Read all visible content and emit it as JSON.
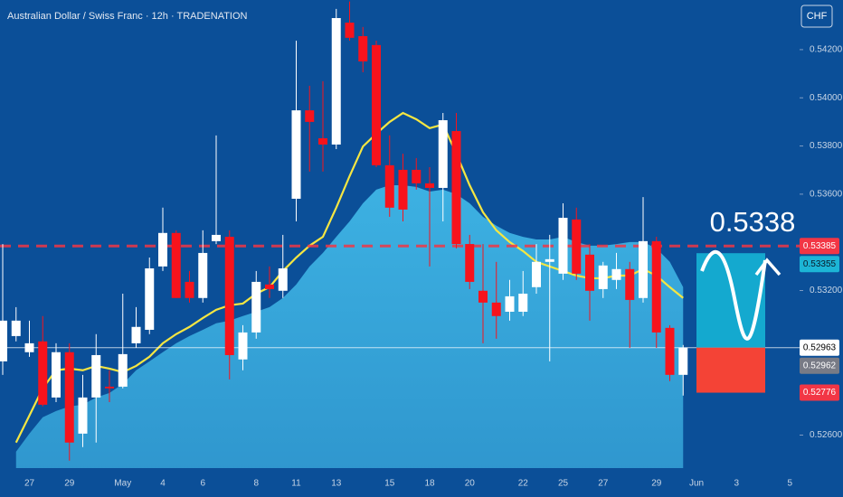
{
  "chart_data": {
    "type": "candlestick",
    "title": "Australian Dollar / Swiss Franc · 12h · TRADENATION",
    "currency": "CHF",
    "annotation": "0.5338",
    "categories": [
      null,
      null,
      "27",
      null,
      null,
      "29",
      null,
      null,
      null,
      "May",
      null,
      null,
      "4",
      null,
      null,
      "6",
      null,
      null,
      null,
      "8",
      null,
      null,
      "11",
      null,
      null,
      "13",
      null,
      null,
      null,
      "15",
      null,
      null,
      "18",
      null,
      null,
      "20",
      null,
      null,
      null,
      "22",
      null,
      null,
      "25",
      null,
      null,
      "27",
      null,
      null,
      null,
      "29",
      null,
      null,
      "Jun",
      null,
      null,
      "3",
      null,
      null,
      null,
      "5"
    ],
    "open": [
      0.52906,
      0.53011,
      0.52944,
      0.52989,
      0.52756,
      0.52944,
      0.52606,
      0.52756,
      0.52801,
      0.52801,
      0.52981,
      0.53037,
      0.533,
      0.53439,
      0.53236,
      0.53169,
      0.53405,
      0.53423,
      0.52914,
      0.53026,
      0.53225,
      0.53199,
      0.53581,
      0.53948,
      0.53832,
      0.53806,
      0.54312,
      0.54256,
      0.54219,
      0.5372,
      0.53701,
      0.53701,
      0.53645,
      0.53626,
      0.53862,
      0.53393,
      0.53199,
      0.5315,
      0.53112,
      0.53112,
      0.53214,
      0.53319,
      0.5327,
      0.53495,
      0.53349,
      0.53206,
      0.53244,
      0.53289,
      0.53169,
      0.53405,
      0.53045,
      0.5285,
      null,
      null,
      null,
      null,
      null,
      null,
      null,
      null
    ],
    "high": [
      0.53393,
      0.53131,
      0.53075,
      0.53094,
      0.52981,
      0.52981,
      0.5285,
      0.53019,
      0.52869,
      0.53187,
      0.53131,
      0.53337,
      0.53544,
      0.5345,
      0.53281,
      0.5345,
      0.53844,
      0.5345,
      0.53056,
      0.53281,
      0.533,
      0.53431,
      0.54237,
      0.5405,
      0.54069,
      0.54369,
      0.544,
      0.54294,
      0.54237,
      0.53844,
      0.53768,
      0.5375,
      0.53712,
      0.53937,
      0.53937,
      0.53431,
      0.53393,
      0.53319,
      0.53244,
      0.53281,
      0.53393,
      0.53431,
      0.53562,
      0.53544,
      0.53393,
      0.53319,
      0.53356,
      0.53319,
      0.53588,
      0.53423,
      0.53056,
      0.52974,
      null,
      null,
      null,
      null,
      null,
      null,
      null,
      null
    ],
    "low": [
      0.5285,
      0.52989,
      0.52925,
      0.52719,
      0.52737,
      0.52494,
      0.5255,
      0.52569,
      0.52737,
      0.52794,
      0.52962,
      0.53019,
      0.53281,
      0.53169,
      0.5315,
      0.5315,
      0.53393,
      0.52831,
      0.52869,
      0.53,
      0.53169,
      0.53169,
      0.53487,
      0.53694,
      0.53694,
      0.53787,
      0.54237,
      0.54106,
      0.53712,
      0.53506,
      0.53487,
      0.53619,
      0.533,
      0.53487,
      0.53375,
      0.53206,
      0.52981,
      0.53,
      0.53075,
      0.53094,
      0.53187,
      0.52906,
      0.53244,
      0.53244,
      0.53075,
      0.53169,
      0.53206,
      0.52962,
      0.5315,
      0.52962,
      0.52824,
      0.52764,
      null,
      null,
      null,
      null,
      null,
      null,
      null,
      null
    ],
    "close": [
      0.53075,
      0.53075,
      0.52981,
      0.52726,
      0.52944,
      0.52569,
      0.52756,
      0.52932,
      0.52794,
      0.52936,
      0.53049,
      0.53292,
      0.53439,
      0.53169,
      0.53169,
      0.53356,
      0.53431,
      0.52932,
      0.53026,
      0.53236,
      0.53206,
      0.53292,
      0.53948,
      0.539,
      0.53806,
      0.54331,
      0.54249,
      0.54151,
      0.5372,
      0.53544,
      0.53536,
      0.53645,
      0.53626,
      0.53907,
      0.53393,
      0.53236,
      0.5315,
      0.53094,
      0.53176,
      0.53187,
      0.53319,
      0.5333,
      0.53502,
      0.5327,
      0.53199,
      0.53304,
      0.53289,
      0.53161,
      0.53405,
      0.53026,
      0.5285,
      0.52963,
      null,
      null,
      null,
      null,
      null,
      null,
      null,
      null
    ],
    "up_color": "#ffffff",
    "down_color": "#f7131c",
    "lines": [
      {
        "color": "#f5e642",
        "values": [
          null,
          0.52569,
          0.52681,
          0.52794,
          0.52869,
          0.52876,
          0.52869,
          0.52887,
          0.52876,
          0.52861,
          0.52887,
          0.52925,
          0.52981,
          0.53019,
          0.53049,
          0.53086,
          0.5312,
          0.53139,
          0.53146,
          0.53187,
          0.53214,
          0.53281,
          0.53337,
          0.53386,
          0.53423,
          0.53544,
          0.53675,
          0.53798,
          0.53851,
          0.539,
          0.53937,
          0.53911,
          0.53874,
          0.53889,
          0.53768,
          0.53637,
          0.53525,
          0.5345,
          0.53401,
          0.53364,
          0.53319,
          0.533,
          0.53281,
          0.53262,
          0.53251,
          0.53251,
          0.53262,
          0.53262,
          0.53289,
          0.53262,
          0.53214,
          0.53169,
          null,
          null,
          null,
          null,
          null,
          null,
          null,
          null
        ]
      }
    ],
    "areas": [
      {
        "color": "#3fb6e6",
        "values": [
          null,
          0.52531,
          0.52606,
          0.52674,
          0.527,
          0.52719,
          0.52726,
          0.52756,
          0.52775,
          0.52812,
          0.52869,
          0.52906,
          0.52944,
          0.52981,
          0.53011,
          0.53037,
          0.53064,
          0.53075,
          0.53094,
          0.53112,
          0.53131,
          0.53169,
          0.53225,
          0.533,
          0.53356,
          0.53423,
          0.53487,
          0.53562,
          0.53619,
          0.53637,
          0.53637,
          0.5363,
          0.53611,
          0.53619,
          0.536,
          0.53562,
          0.53506,
          0.53469,
          0.53439,
          0.53423,
          0.53412,
          0.53412,
          0.53423,
          0.53401,
          0.53386,
          0.53386,
          0.53393,
          0.53401,
          0.53401,
          0.53375,
          0.53319,
          0.53214,
          null,
          null,
          null,
          null,
          null,
          null,
          null,
          null
        ]
      }
    ],
    "ylim": [
      0.52463,
      0.54406
    ],
    "yticks": [
      {
        "value": 0.526,
        "label": "0.52600"
      },
      {
        "value": 0.532,
        "label": "0.53200"
      },
      {
        "value": 0.536,
        "label": "0.53600"
      },
      {
        "value": 0.538,
        "label": "0.53800"
      },
      {
        "value": 0.54,
        "label": "0.54000"
      },
      {
        "value": 0.542,
        "label": "0.54200"
      }
    ],
    "price_labels": [
      {
        "value": 0.53385,
        "color": "#f23645",
        "text_color": "#ffffff",
        "line": "dashed"
      },
      {
        "value": 0.53355,
        "color": "#1cb5d6",
        "text_color": "#0a1a2a"
      },
      {
        "value": 0.52963,
        "color": "#ffffff",
        "text_color": "#000000",
        "line": "solid"
      },
      {
        "value": 0.52962,
        "color": "#787b86",
        "text_color": "#ffffff"
      },
      {
        "value": 0.52776,
        "color": "#f23645",
        "text_color": "#ffffff"
      }
    ],
    "target_zone": {
      "top": 0.53355,
      "entry": 0.52963,
      "stop": 0.52776,
      "target_color": "#14a9cf",
      "stop_color": "#f44336"
    }
  }
}
